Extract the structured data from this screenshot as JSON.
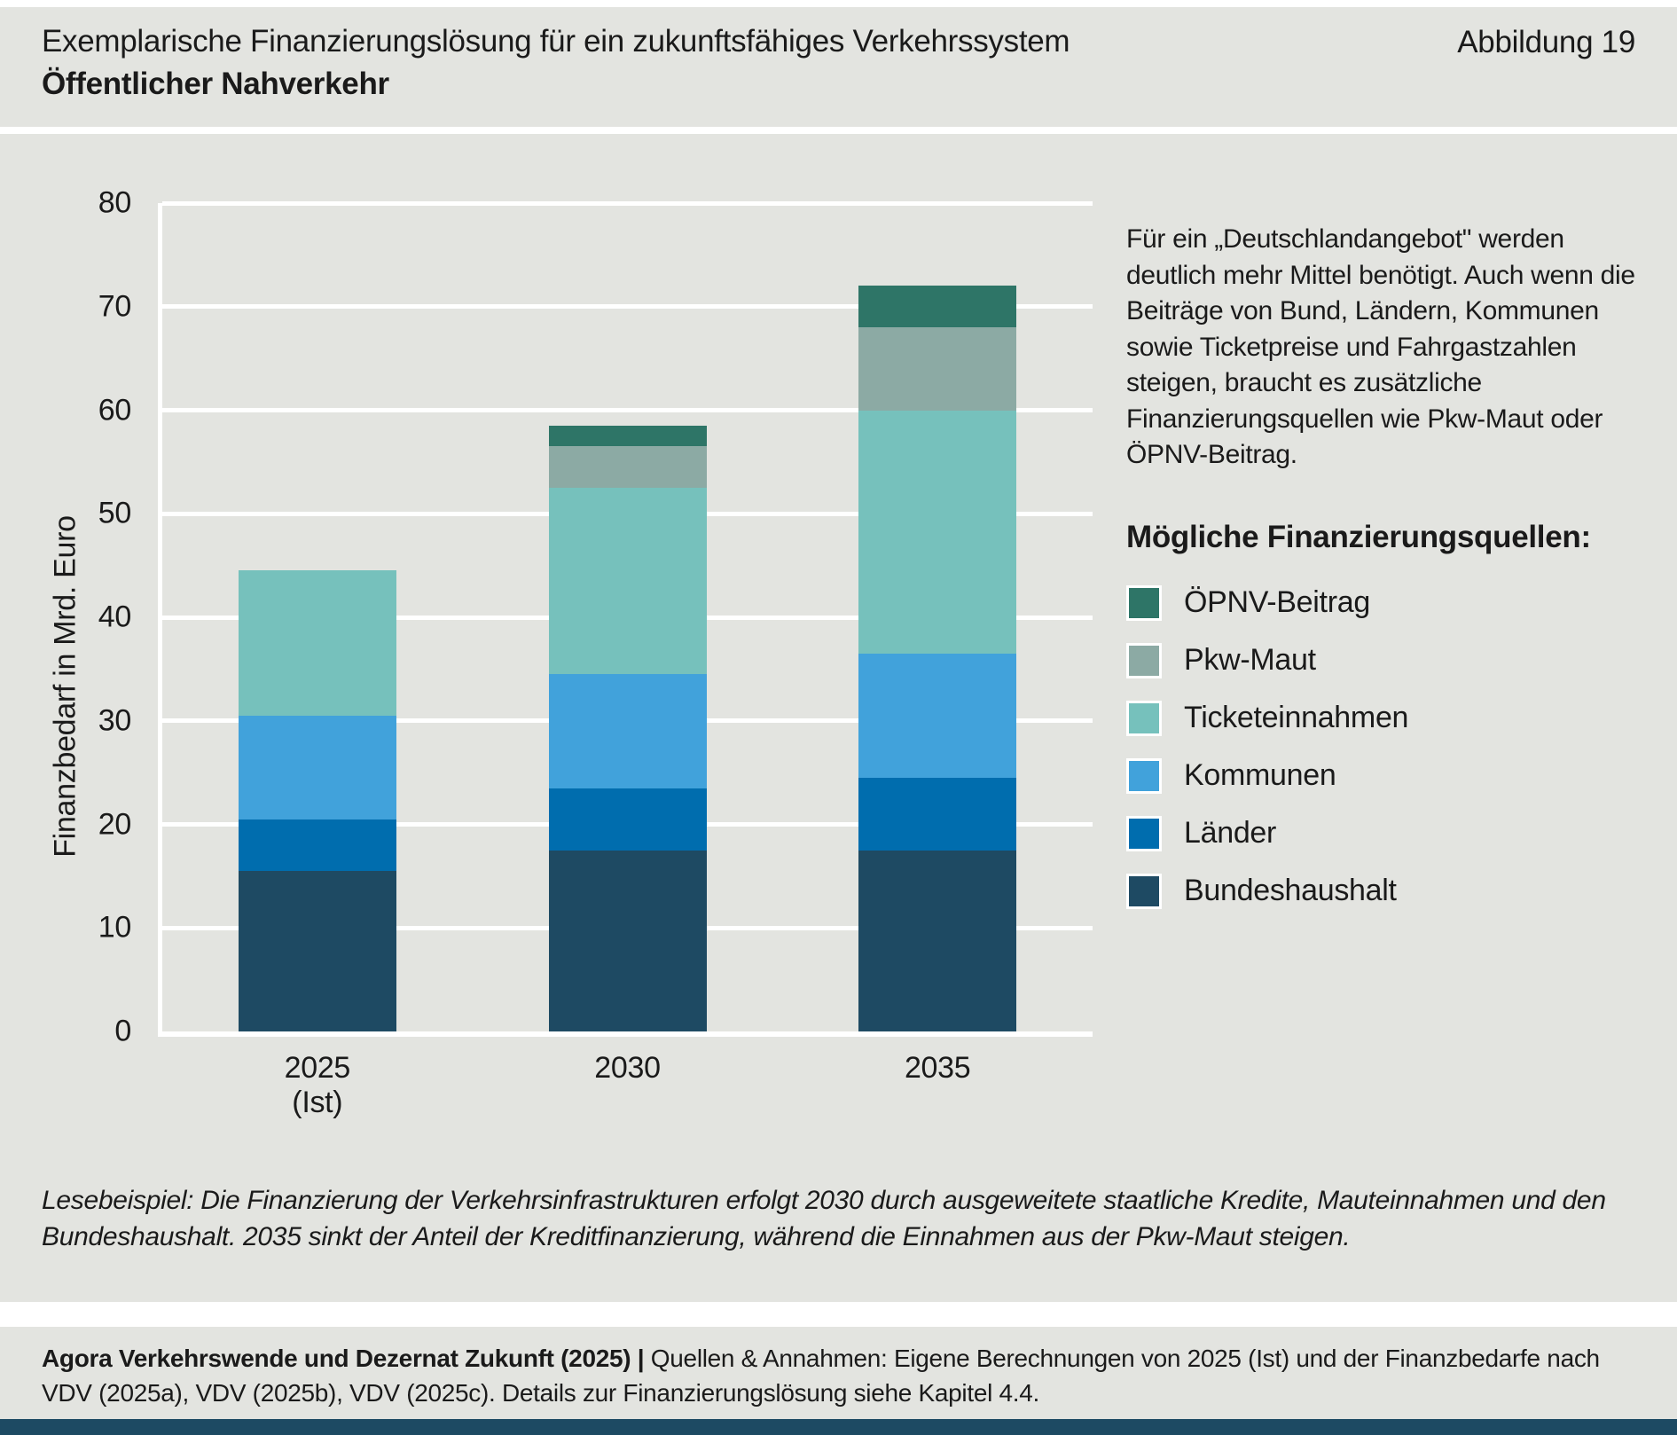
{
  "header": {
    "title": "Exemplarische Finanzierungslösung für ein zukunftsfähiges Verkehrssystem",
    "figure_label": "Abbildung 19",
    "subtitle": "Öffentlicher Nahverkehr"
  },
  "annotation": {
    "text": "Für ein „Deutschlandangebot\" werden deutlich mehr Mittel benötigt. Auch wenn die Beiträge von Bund, Ländern, Kommunen sowie Ticketpreise und Fahrgastzahlen steigen, braucht es zusätzliche Finanzierungsquellen wie Pkw-Maut oder ÖPNV-Beitrag."
  },
  "legend": {
    "heading": "Mögliche Finanzierungsquellen:",
    "items": [
      {
        "label": "ÖPNV-Beitrag",
        "color": "#2e7567"
      },
      {
        "label": "Pkw-Maut",
        "color": "#8caaa4"
      },
      {
        "label": "Ticketeinnahmen",
        "color": "#76c1bc"
      },
      {
        "label": "Kommunen",
        "color": "#41a2db"
      },
      {
        "label": "Länder",
        "color": "#006dae"
      },
      {
        "label": "Bundeshaushalt",
        "color": "#1e4a63"
      }
    ]
  },
  "chart_data": {
    "type": "bar",
    "subtype": "stacked-vertical",
    "unit": "Mrd. Euro",
    "ylabel": "Finanzbedarf in Mrd. Euro",
    "xlabel": "",
    "ylim": [
      0,
      80
    ],
    "yticks": [
      0,
      10,
      20,
      30,
      40,
      50,
      60,
      70,
      80
    ],
    "grid": "horizontal-white",
    "legend_position": "right",
    "categories": [
      "2025 (Ist)",
      "2030",
      "2035"
    ],
    "x_tick_lines": [
      [
        "2025",
        "(Ist)"
      ],
      [
        "2030"
      ],
      [
        "2035"
      ]
    ],
    "series": [
      {
        "name": "Bundeshaushalt",
        "color": "#1e4a63",
        "values": [
          15.5,
          17.5,
          17.5
        ]
      },
      {
        "name": "Länder",
        "color": "#006dae",
        "values": [
          5,
          6,
          7
        ]
      },
      {
        "name": "Kommunen",
        "color": "#41a2db",
        "values": [
          10,
          11,
          12
        ]
      },
      {
        "name": "Ticketeinnahmen",
        "color": "#76c1bc",
        "values": [
          14,
          18,
          23.5
        ]
      },
      {
        "name": "Pkw-Maut",
        "color": "#8caaa4",
        "values": [
          0,
          4,
          8
        ]
      },
      {
        "name": "ÖPNV-Beitrag",
        "color": "#2e7567",
        "values": [
          0,
          2,
          4
        ]
      }
    ],
    "totals": [
      44.5,
      58.5,
      72
    ]
  },
  "lesebeispiel": "Lesebeispiel: Die Finanzierung der Verkehrsinfrastrukturen erfolgt 2030 durch ausgeweitete staatliche Kredite, Mauteinnahmen und den Bundeshaushalt. 2035 sinkt der Anteil der Kreditfinanzierung, während die Einnahmen aus der Pkw-Maut steigen.",
  "footer": {
    "bold": "Agora Verkehrswende und Dezernat Zukunft (2025) |",
    "rest": "Quellen & Annahmen: Eigene Berechnungen von 2025 (Ist) und der Finanzbedarfe nach VDV (2025a), VDV (2025b), VDV (2025c). Details zur Finanzierungslösung siehe Kapitel 4.4."
  },
  "colors": {
    "block_background": "#e3e4e0",
    "grid": "#ffffff",
    "text": "#1a1a1a",
    "bottom_bar": "#1d4a63"
  }
}
